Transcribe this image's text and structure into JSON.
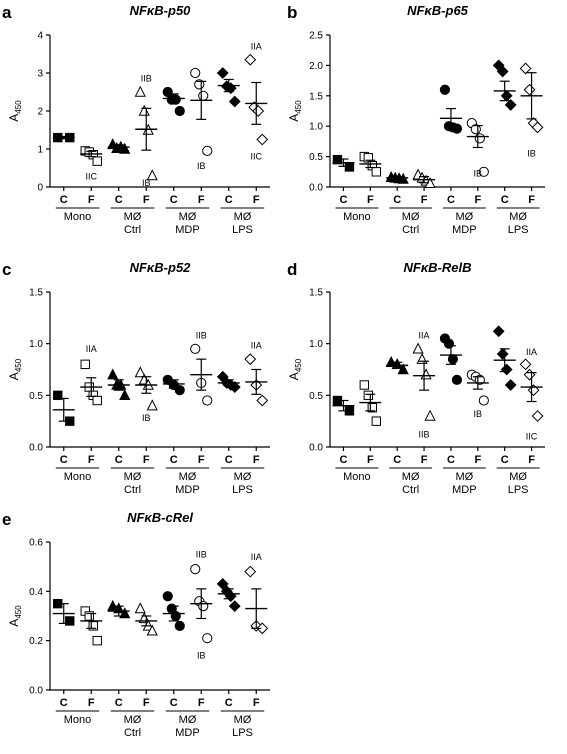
{
  "chart_data": [
    {
      "panel": "a",
      "type": "scatter",
      "title": "NFκB-p50",
      "ylabel": "A450",
      "ylim": [
        0,
        4
      ],
      "yticks": [
        0,
        1,
        2,
        3,
        4
      ],
      "categories": [
        "C",
        "F",
        "C",
        "F",
        "C",
        "F",
        "C",
        "F"
      ],
      "groups": [
        "Mono",
        "MØ\nCtrl",
        "MØ\nMDP",
        "MØ\nLPS"
      ],
      "series": [
        {
          "marker": "square",
          "fill": true,
          "points": [
            1.3,
            1.3
          ],
          "mean": 1.3,
          "sem": 0.03
        },
        {
          "marker": "square",
          "fill": false,
          "points": [
            0.95,
            0.92,
            0.85,
            0.68
          ],
          "mean": 0.87,
          "sem": 0.07
        },
        {
          "marker": "triangle",
          "fill": true,
          "points": [
            1.12,
            1.02,
            1.05,
            1.0
          ],
          "mean": 1.05,
          "sem": 0.06
        },
        {
          "marker": "triangle",
          "fill": false,
          "points": [
            2.5,
            2.0,
            1.5,
            0.3
          ],
          "mean": 1.52,
          "sem": 0.55
        },
        {
          "marker": "circle",
          "fill": true,
          "points": [
            2.5,
            2.3,
            2.3,
            2.0
          ],
          "mean": 2.33,
          "sem": 0.12
        },
        {
          "marker": "circle",
          "fill": false,
          "points": [
            3.0,
            2.7,
            2.4,
            0.95
          ],
          "mean": 2.28,
          "sem": 0.5
        },
        {
          "marker": "diamond",
          "fill": true,
          "points": [
            3.0,
            2.65,
            2.6,
            2.25
          ],
          "mean": 2.67,
          "sem": 0.16
        },
        {
          "marker": "diamond",
          "fill": false,
          "points": [
            3.35,
            2.1,
            2.0,
            1.25
          ],
          "mean": 2.2,
          "sem": 0.55
        }
      ],
      "annotations": [
        {
          "category": 1,
          "text": "IIC",
          "y": 0.28
        },
        {
          "category": 3,
          "text": "IIB",
          "y": 2.85
        },
        {
          "category": 3,
          "text": "IB",
          "y": 0.1
        },
        {
          "category": 5,
          "text": "IB",
          "y": 0.55
        },
        {
          "category": 7,
          "text": "IIA",
          "y": 3.7
        },
        {
          "category": 7,
          "text": "IIC",
          "y": 0.8
        }
      ]
    },
    {
      "panel": "b",
      "type": "scatter",
      "title": "NFκB-p65",
      "ylabel": "A450",
      "ylim": [
        0,
        2.5
      ],
      "yticks": [
        "0.0",
        "0.5",
        "1.0",
        "1.5",
        "2.0",
        "2.5"
      ],
      "categories": [
        "C",
        "F",
        "C",
        "F",
        "C",
        "F",
        "C",
        "F"
      ],
      "groups": [
        "Mono",
        "MØ\nCtrl",
        "MØ\nMDP",
        "MØ\nLPS"
      ],
      "series": [
        {
          "marker": "square",
          "fill": true,
          "points": [
            0.45,
            0.33
          ],
          "mean": 0.4,
          "sem": 0.06
        },
        {
          "marker": "square",
          "fill": false,
          "points": [
            0.5,
            0.48,
            0.35,
            0.25
          ],
          "mean": 0.38,
          "sem": 0.06
        },
        {
          "marker": "triangle",
          "fill": true,
          "points": [
            0.16,
            0.15,
            0.14,
            0.13
          ],
          "mean": 0.15,
          "sem": 0.02
        },
        {
          "marker": "triangle",
          "fill": false,
          "points": [
            0.2,
            0.15,
            0.1,
            0.06
          ],
          "mean": 0.12,
          "sem": 0.05
        },
        {
          "marker": "circle",
          "fill": true,
          "points": [
            1.6,
            1.0,
            0.98,
            0.96
          ],
          "mean": 1.13,
          "sem": 0.16
        },
        {
          "marker": "circle",
          "fill": false,
          "points": [
            1.05,
            0.95,
            0.8,
            0.25
          ],
          "mean": 0.83,
          "sem": 0.18
        },
        {
          "marker": "diamond",
          "fill": true,
          "points": [
            2.0,
            1.9,
            1.5,
            1.35
          ],
          "mean": 1.58,
          "sem": 0.16
        },
        {
          "marker": "diamond",
          "fill": false,
          "points": [
            1.95,
            1.6,
            1.05,
            0.98
          ],
          "mean": 1.5,
          "sem": 0.38
        }
      ],
      "annotations": [
        {
          "category": 5,
          "text": "IB",
          "y": 0.22
        },
        {
          "category": 7,
          "text": "IB",
          "y": 0.55
        }
      ]
    },
    {
      "panel": "c",
      "type": "scatter",
      "title": "NFκB-p52",
      "ylabel": "A450",
      "ylim": [
        0,
        1.5
      ],
      "yticks": [
        "0.0",
        "0.5",
        "1.0",
        "1.5"
      ],
      "categories": [
        "C",
        "F",
        "C",
        "F",
        "C",
        "F",
        "C",
        "F"
      ],
      "groups": [
        "Mono",
        "MØ\nCtrl",
        "MØ\nMDP",
        "MØ\nLPS"
      ],
      "series": [
        {
          "marker": "square",
          "fill": true,
          "points": [
            0.5,
            0.25
          ],
          "mean": 0.36,
          "sem": 0.11
        },
        {
          "marker": "square",
          "fill": false,
          "points": [
            0.8,
            0.58,
            0.5,
            0.45
          ],
          "mean": 0.58,
          "sem": 0.09
        },
        {
          "marker": "triangle",
          "fill": true,
          "points": [
            0.7,
            0.6,
            0.6,
            0.5
          ],
          "mean": 0.6,
          "sem": 0.05
        },
        {
          "marker": "triangle",
          "fill": false,
          "points": [
            0.72,
            0.65,
            0.6,
            0.4
          ],
          "mean": 0.6,
          "sem": 0.08
        },
        {
          "marker": "circle",
          "fill": true,
          "points": [
            0.65,
            0.6,
            0.55
          ],
          "mean": 0.61,
          "sem": 0.04
        },
        {
          "marker": "circle",
          "fill": false,
          "points": [
            0.95,
            0.62,
            0.45
          ],
          "mean": 0.7,
          "sem": 0.15
        },
        {
          "marker": "diamond",
          "fill": true,
          "points": [
            0.68,
            0.62,
            0.6,
            0.58
          ],
          "mean": 0.62,
          "sem": 0.03
        },
        {
          "marker": "diamond",
          "fill": false,
          "points": [
            0.85,
            0.6,
            0.45
          ],
          "mean": 0.63,
          "sem": 0.12
        }
      ],
      "annotations": [
        {
          "category": 1,
          "text": "IIA",
          "y": 0.95
        },
        {
          "category": 3,
          "text": "IB",
          "y": 0.28
        },
        {
          "category": 5,
          "text": "IIB",
          "y": 1.08
        },
        {
          "category": 7,
          "text": "IIA",
          "y": 0.98
        }
      ]
    },
    {
      "panel": "d",
      "type": "scatter",
      "title": "NFκB-RelB",
      "ylabel": "A450",
      "ylim": [
        0,
        1.5
      ],
      "yticks": [
        "0.0",
        "0.5",
        "1.0",
        "1.5"
      ],
      "categories": [
        "C",
        "F",
        "C",
        "F",
        "C",
        "F",
        "C",
        "F"
      ],
      "groups": [
        "Mono",
        "MØ\nCtrl",
        "MØ\nMDP",
        "MØ\nLPS"
      ],
      "series": [
        {
          "marker": "square",
          "fill": true,
          "points": [
            0.45,
            0.35
          ],
          "mean": 0.4,
          "sem": 0.05
        },
        {
          "marker": "square",
          "fill": false,
          "points": [
            0.6,
            0.5,
            0.38,
            0.25
          ],
          "mean": 0.43,
          "sem": 0.08
        },
        {
          "marker": "triangle",
          "fill": true,
          "points": [
            0.82,
            0.8,
            0.75
          ],
          "mean": 0.79,
          "sem": 0.03
        },
        {
          "marker": "triangle",
          "fill": false,
          "points": [
            0.95,
            0.85,
            0.7,
            0.3
          ],
          "mean": 0.69,
          "sem": 0.14
        },
        {
          "marker": "circle",
          "fill": true,
          "points": [
            1.05,
            1.0,
            0.85,
            0.65
          ],
          "mean": 0.89,
          "sem": 0.09
        },
        {
          "marker": "circle",
          "fill": false,
          "points": [
            0.7,
            0.68,
            0.65,
            0.45
          ],
          "mean": 0.62,
          "sem": 0.06
        },
        {
          "marker": "diamond",
          "fill": true,
          "points": [
            1.12,
            0.9,
            0.75,
            0.6
          ],
          "mean": 0.84,
          "sem": 0.11
        },
        {
          "marker": "diamond",
          "fill": false,
          "points": [
            0.8,
            0.7,
            0.55,
            0.3
          ],
          "mean": 0.58,
          "sem": 0.14
        }
      ],
      "annotations": [
        {
          "category": 3,
          "text": "IIA",
          "y": 1.08
        },
        {
          "category": 3,
          "text": "IIB",
          "y": 0.12
        },
        {
          "category": 5,
          "text": "IB",
          "y": 0.32
        },
        {
          "category": 7,
          "text": "IIA",
          "y": 0.92
        },
        {
          "category": 7,
          "text": "IIC",
          "y": 0.1
        }
      ]
    },
    {
      "panel": "e",
      "type": "scatter",
      "title": "NFκB-cRel",
      "ylabel": "A450",
      "ylim": [
        0,
        0.6
      ],
      "yticks": [
        "0.0",
        "0.2",
        "0.4",
        "0.6"
      ],
      "categories": [
        "C",
        "F",
        "C",
        "F",
        "C",
        "F",
        "C",
        "F"
      ],
      "groups": [
        "Mono",
        "MØ\nCtrl",
        "MØ\nMDP",
        "MØ\nLPS"
      ],
      "series": [
        {
          "marker": "square",
          "fill": true,
          "points": [
            0.35,
            0.28
          ],
          "mean": 0.31,
          "sem": 0.04
        },
        {
          "marker": "square",
          "fill": false,
          "points": [
            0.32,
            0.3,
            0.26,
            0.2
          ],
          "mean": 0.28,
          "sem": 0.03
        },
        {
          "marker": "triangle",
          "fill": true,
          "points": [
            0.34,
            0.33,
            0.31
          ],
          "mean": 0.32,
          "sem": 0.02
        },
        {
          "marker": "triangle",
          "fill": false,
          "points": [
            0.33,
            0.29,
            0.26,
            0.24
          ],
          "mean": 0.28,
          "sem": 0.02
        },
        {
          "marker": "circle",
          "fill": true,
          "points": [
            0.38,
            0.33,
            0.3,
            0.26
          ],
          "mean": 0.31,
          "sem": 0.03
        },
        {
          "marker": "circle",
          "fill": false,
          "points": [
            0.49,
            0.36,
            0.34,
            0.21
          ],
          "mean": 0.35,
          "sem": 0.06
        },
        {
          "marker": "diamond",
          "fill": true,
          "points": [
            0.43,
            0.4,
            0.38,
            0.34
          ],
          "mean": 0.39,
          "sem": 0.02
        },
        {
          "marker": "diamond",
          "fill": false,
          "points": [
            0.48,
            0.26,
            0.25
          ],
          "mean": 0.33,
          "sem": 0.08
        }
      ],
      "annotations": [
        {
          "category": 5,
          "text": "IIB",
          "y": 0.55
        },
        {
          "category": 5,
          "text": "IB",
          "y": 0.14
        },
        {
          "category": 7,
          "text": "IIA",
          "y": 0.54
        }
      ]
    }
  ]
}
